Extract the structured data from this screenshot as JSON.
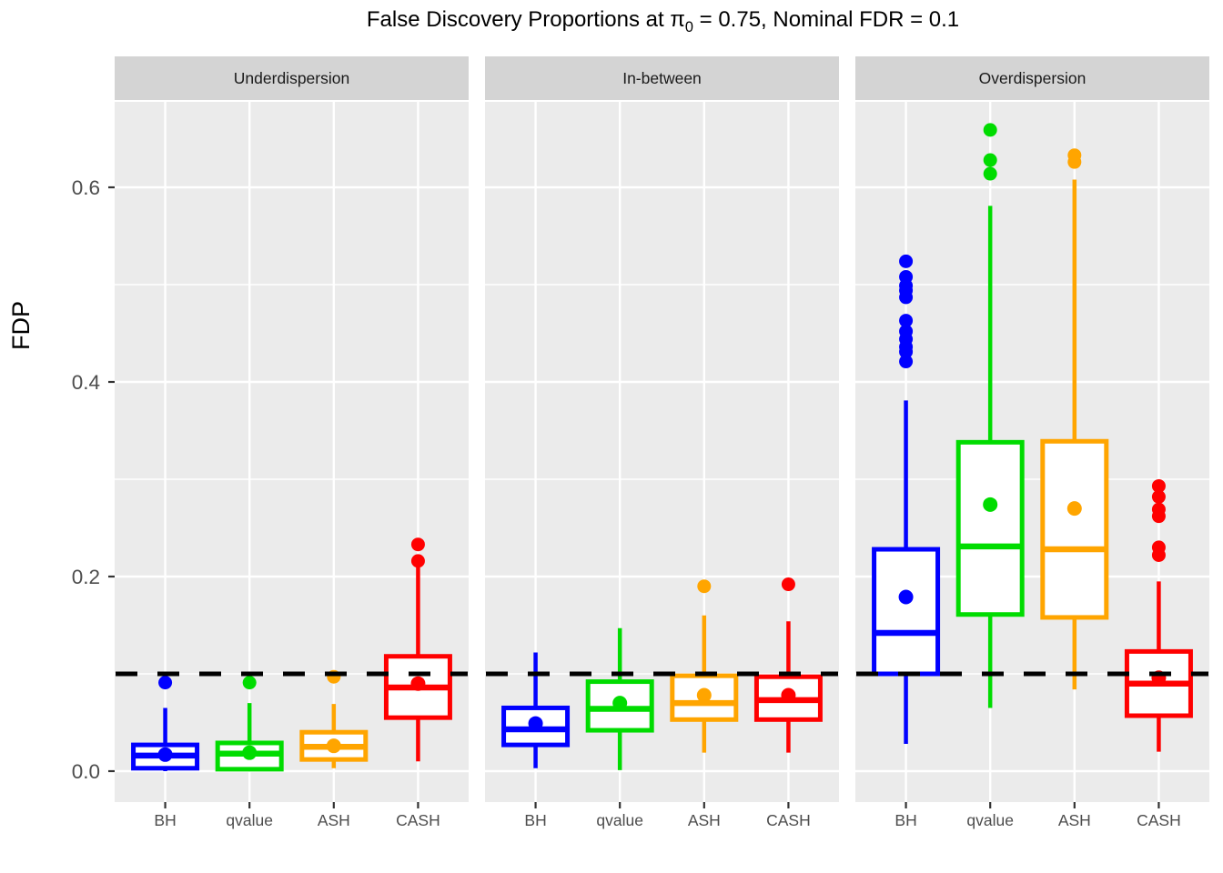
{
  "title": {
    "prefix": "False Discovery Proportions at ",
    "pi": "π",
    "pi_sub": "0",
    "suffix": " = 0.75, Nominal FDR = 0.1"
  },
  "chart_data": {
    "type": "boxplot",
    "title": "False Discovery Proportions at π0 = 0.75, Nominal FDR = 0.1",
    "ylabel": "FDP",
    "xlabel": "",
    "y_axis": {
      "ticks": [
        {
          "label": "0.0",
          "value": 0.0
        },
        {
          "label": "0.2",
          "value": 0.2
        },
        {
          "label": "0.4",
          "value": 0.4
        },
        {
          "label": "0.6",
          "value": 0.6
        }
      ],
      "minor_gridlines": [
        0.1,
        0.3,
        0.5
      ],
      "ylim": [
        -0.032,
        0.688
      ]
    },
    "reference_line": {
      "value": 0.1,
      "style": "dashed",
      "color": "#000000",
      "meaning": "Nominal FDR"
    },
    "methods": [
      "BH",
      "qvalue",
      "ASH",
      "CASH"
    ],
    "colors": {
      "BH": "#0000FF",
      "qvalue": "#00DC00",
      "ASH": "#FFA500",
      "CASH": "#FF0000"
    },
    "theme": {
      "panel_bg": "#EBEBEB",
      "strip_bg": "#D4D4D4",
      "gridline": "#FFFFFF",
      "axis_text": "#4D4D4D",
      "tick_mark": "#333333"
    },
    "facets": [
      {
        "label": "Underdispersion",
        "boxes": [
          {
            "method": "BH",
            "whisker_min": 0.0,
            "q1": 0.003,
            "median": 0.016,
            "q3": 0.027,
            "whisker_max": 0.065,
            "mean": 0.017,
            "outliers": [
              0.091
            ]
          },
          {
            "method": "qvalue",
            "whisker_min": 0.0,
            "q1": 0.002,
            "median": 0.018,
            "q3": 0.029,
            "whisker_max": 0.07,
            "mean": 0.019,
            "outliers": [
              0.091
            ]
          },
          {
            "method": "ASH",
            "whisker_min": 0.003,
            "q1": 0.012,
            "median": 0.025,
            "q3": 0.04,
            "whisker_max": 0.069,
            "mean": 0.026,
            "outliers": [
              0.097
            ]
          },
          {
            "method": "CASH",
            "whisker_min": 0.01,
            "q1": 0.055,
            "median": 0.086,
            "q3": 0.118,
            "whisker_max": 0.21,
            "mean": 0.09,
            "outliers": [
              0.216,
              0.233
            ]
          }
        ]
      },
      {
        "label": "In-between",
        "boxes": [
          {
            "method": "BH",
            "whisker_min": 0.003,
            "q1": 0.027,
            "median": 0.043,
            "q3": 0.065,
            "whisker_max": 0.122,
            "mean": 0.049,
            "outliers": []
          },
          {
            "method": "qvalue",
            "whisker_min": 0.001,
            "q1": 0.042,
            "median": 0.064,
            "q3": 0.092,
            "whisker_max": 0.147,
            "mean": 0.07,
            "outliers": []
          },
          {
            "method": "ASH",
            "whisker_min": 0.019,
            "q1": 0.053,
            "median": 0.07,
            "q3": 0.098,
            "whisker_max": 0.16,
            "mean": 0.078,
            "outliers": [
              0.19
            ]
          },
          {
            "method": "CASH",
            "whisker_min": 0.019,
            "q1": 0.053,
            "median": 0.073,
            "q3": 0.097,
            "whisker_max": 0.154,
            "mean": 0.078,
            "outliers": [
              0.192
            ]
          }
        ]
      },
      {
        "label": "Overdispersion",
        "boxes": [
          {
            "method": "BH",
            "whisker_min": 0.028,
            "q1": 0.1,
            "median": 0.142,
            "q3": 0.228,
            "whisker_max": 0.381,
            "mean": 0.179,
            "outliers": [
              0.421,
              0.431,
              0.436,
              0.444,
              0.452,
              0.463,
              0.487,
              0.494,
              0.499,
              0.508,
              0.524
            ]
          },
          {
            "method": "qvalue",
            "whisker_min": 0.065,
            "q1": 0.161,
            "median": 0.231,
            "q3": 0.338,
            "whisker_max": 0.581,
            "mean": 0.274,
            "outliers": [
              0.614,
              0.628,
              0.659
            ]
          },
          {
            "method": "ASH",
            "whisker_min": 0.084,
            "q1": 0.158,
            "median": 0.228,
            "q3": 0.339,
            "whisker_max": 0.608,
            "mean": 0.27,
            "outliers": [
              0.626,
              0.633
            ]
          },
          {
            "method": "CASH",
            "whisker_min": 0.02,
            "q1": 0.057,
            "median": 0.09,
            "q3": 0.123,
            "whisker_max": 0.195,
            "mean": 0.096,
            "outliers": [
              0.222,
              0.23,
              0.262,
              0.269,
              0.282,
              0.293
            ]
          }
        ]
      }
    ]
  }
}
